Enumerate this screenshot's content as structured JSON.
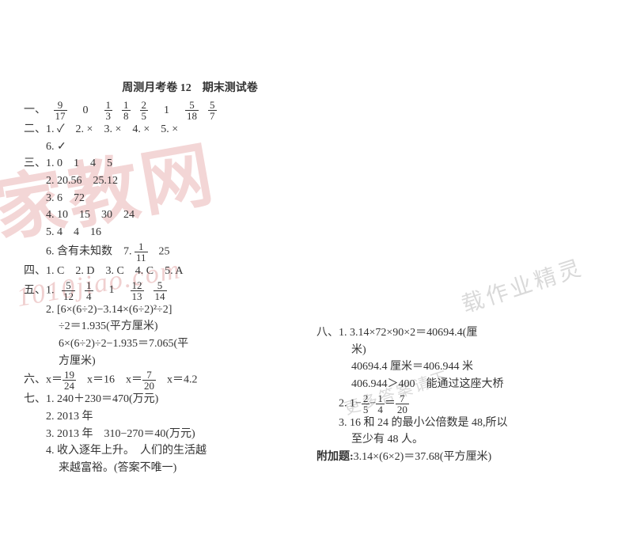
{
  "colors": {
    "text": "#333333",
    "bg": "#ffffff",
    "wm_red": "#f3d6d6",
    "wm_gray": "#d9d9d9"
  },
  "watermarks": {
    "w1": "家教网",
    "w2": "1010jiao.com",
    "w3": "载作业精灵",
    "w4": "更多答案请下"
  },
  "title": "周测月考卷 12　期末测试卷",
  "s1": {
    "label": "一、",
    "fracs": [
      {
        "n": "9",
        "d": "17"
      },
      {
        "t": "0"
      },
      {
        "n": "1",
        "d": "3"
      },
      {
        "n": "1",
        "d": "8"
      },
      {
        "n": "2",
        "d": "5"
      },
      {
        "t": "1"
      },
      {
        "n": "5",
        "d": "18"
      },
      {
        "n": "5",
        "d": "7"
      }
    ]
  },
  "s2": {
    "label": "二、",
    "line1": "1. ✓　2. ×　3. ×　4. ×　5. ×",
    "line2": "6. ✓"
  },
  "s3": {
    "label": "三、",
    "l1": "1. 0　1　4　5",
    "l2": "2. 20.56　25.12",
    "l3": "3. 6　72",
    "l4": "4. 10　15　30　24",
    "l5": "5. 4　4　16",
    "l6a": "6. 含有未知数　7. ",
    "l6frac": {
      "n": "1",
      "d": "11"
    },
    "l6b": "　25"
  },
  "s4": {
    "label": "四、",
    "l1": "1. C　2. D　3. C　4. C　5. A"
  },
  "s5": {
    "label": "五、",
    "l1_pre": "1. ",
    "fracs": [
      {
        "n": "5",
        "d": "12"
      },
      {
        "n": "1",
        "d": "4"
      },
      {
        "t": "1"
      },
      {
        "n": "12",
        "d": "13"
      },
      {
        "n": "5",
        "d": "14"
      }
    ],
    "l2": "2. [6×(6÷2)−3.14×(6÷2)²÷2]",
    "l3": "÷2＝1.935(平方厘米)",
    "l4": "6×(6÷2)÷2−1.935＝7.065(平",
    "l5": "方厘米)"
  },
  "s6": {
    "label": "六、",
    "pre": "x＝",
    "f1": {
      "n": "19",
      "d": "24"
    },
    "m1": "　x＝16　x＝",
    "f2": {
      "n": "7",
      "d": "20"
    },
    "m2": "　x＝4.2"
  },
  "s7": {
    "label": "七、",
    "l1": "1. 240＋230＝470(万元)",
    "l2": "2. 2013 年",
    "l3": "3. 2013 年　310−270＝40(万元)",
    "l4": "4. 收入逐年上升。　人们的生活越",
    "l5": "来越富裕。(答案不唯一)"
  },
  "s8": {
    "label": "八、",
    "l1": "1. 3.14×72×90×2＝40694.4(厘",
    "l1b": "米)",
    "l2": "40694.4 厘米＝406.944 米",
    "l3": "406.944＞400　能通过这座大桥",
    "l4a": "2. 1−",
    "f1": {
      "n": "2",
      "d": "5"
    },
    "l4b": "−",
    "f2": {
      "n": "1",
      "d": "4"
    },
    "l4c": "＝",
    "f3": {
      "n": "7",
      "d": "20"
    },
    "l5": "3. 16 和 24 的最小公倍数是 48,所以",
    "l6": "至少有 48 人。"
  },
  "extra": {
    "label": "附加题:",
    "text": "3.14×(6×2)＝37.68(平方厘米)"
  }
}
